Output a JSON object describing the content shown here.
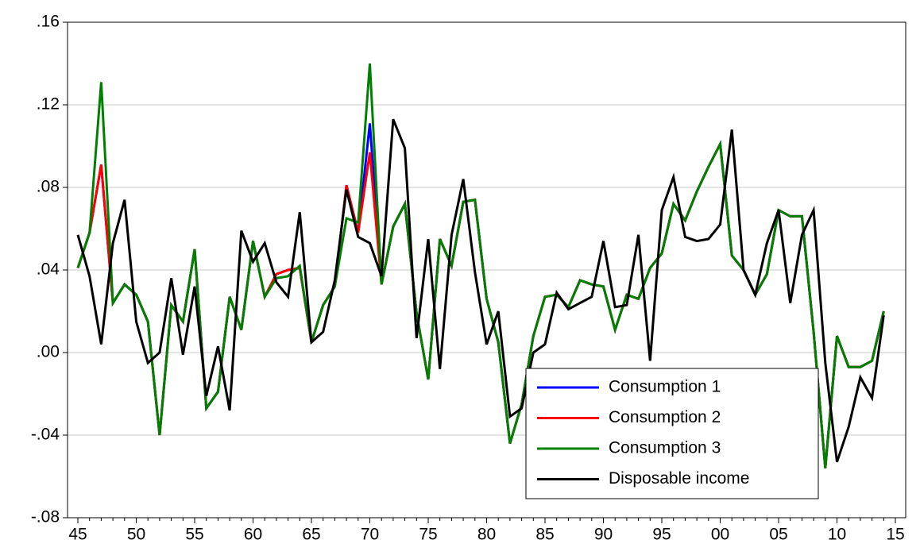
{
  "chart_data": {
    "type": "line",
    "categories": [
      "45",
      null,
      null,
      null,
      null,
      "50",
      null,
      null,
      null,
      null,
      "55",
      null,
      null,
      null,
      null,
      "60",
      null,
      null,
      null,
      null,
      "65",
      null,
      null,
      null,
      null,
      "70",
      null,
      null,
      null,
      null,
      "75",
      null,
      null,
      null,
      null,
      "80",
      null,
      null,
      null,
      null,
      "85",
      null,
      null,
      null,
      null,
      "90",
      null,
      null,
      null,
      null,
      "95",
      null,
      null,
      null,
      null,
      "00",
      null,
      null,
      null,
      null,
      "05",
      null,
      null,
      null,
      null,
      "10",
      null,
      null,
      null,
      null,
      "15"
    ],
    "series": [
      {
        "name": "Consumption 1",
        "color": "#0000ff",
        "values": [
          0.041,
          0.058,
          0.091,
          0.024,
          0.033,
          0.028,
          0.015,
          -0.04,
          0.023,
          0.015,
          0.05,
          -0.027,
          -0.019,
          0.027,
          0.011,
          0.054,
          0.027,
          0.038,
          0.04,
          0.041,
          0.005,
          0.023,
          0.032,
          0.081,
          0.058,
          0.111,
          0.033,
          0.061,
          0.072,
          0.019,
          -0.013,
          0.055,
          0.042,
          0.073,
          0.074,
          0.026,
          0.005,
          -0.044,
          -0.025,
          0.008,
          0.027,
          0.028,
          0.022,
          0.035,
          0.033,
          0.032,
          0.011,
          0.028,
          0.026,
          0.041,
          0.048,
          0.072,
          0.064,
          0.078,
          0.09,
          0.101,
          0.047,
          0.04,
          0.028,
          0.038,
          0.069,
          0.066,
          0.066,
          0.01,
          -0.056,
          0.008,
          -0.007,
          -0.007,
          -0.004,
          0.02,
          null
        ]
      },
      {
        "name": "Consumption 2",
        "color": "#ff0000",
        "values": [
          0.041,
          0.058,
          0.091,
          0.024,
          0.033,
          0.028,
          0.015,
          -0.04,
          0.023,
          0.015,
          0.05,
          -0.027,
          -0.019,
          0.027,
          0.011,
          0.054,
          0.027,
          0.038,
          0.04,
          0.041,
          0.005,
          0.023,
          0.032,
          0.081,
          0.058,
          0.097,
          0.033,
          0.061,
          0.072,
          0.019,
          -0.013,
          0.055,
          0.042,
          0.073,
          0.074,
          0.026,
          0.005,
          -0.044,
          -0.025,
          0.008,
          0.027,
          0.028,
          0.022,
          0.035,
          0.033,
          0.032,
          0.011,
          0.028,
          0.026,
          0.041,
          0.048,
          0.072,
          0.064,
          0.078,
          0.09,
          0.101,
          0.047,
          0.04,
          0.028,
          0.038,
          0.069,
          0.066,
          0.066,
          0.01,
          -0.056,
          0.008,
          -0.007,
          -0.007,
          -0.004,
          0.02,
          null
        ]
      },
      {
        "name": "Consumption 3",
        "color": "#008000",
        "values": [
          0.041,
          0.058,
          0.131,
          0.024,
          0.033,
          0.028,
          0.015,
          -0.04,
          0.023,
          0.015,
          0.05,
          -0.027,
          -0.019,
          0.027,
          0.011,
          0.054,
          0.027,
          0.036,
          0.037,
          0.042,
          0.005,
          0.023,
          0.032,
          0.065,
          0.063,
          0.14,
          0.033,
          0.061,
          0.072,
          0.019,
          -0.013,
          0.055,
          0.042,
          0.073,
          0.074,
          0.026,
          0.005,
          -0.044,
          -0.025,
          0.008,
          0.027,
          0.028,
          0.022,
          0.035,
          0.033,
          0.032,
          0.011,
          0.028,
          0.026,
          0.041,
          0.048,
          0.072,
          0.064,
          0.078,
          0.09,
          0.101,
          0.047,
          0.04,
          0.028,
          0.038,
          0.069,
          0.066,
          0.066,
          0.01,
          -0.056,
          0.008,
          -0.007,
          -0.007,
          -0.004,
          0.02,
          null
        ]
      },
      {
        "name": "Disposable income",
        "color": "#000000",
        "values": [
          0.057,
          0.037,
          0.004,
          0.053,
          0.074,
          0.015,
          -0.005,
          0.0,
          0.036,
          -0.001,
          0.032,
          -0.021,
          0.003,
          -0.028,
          0.059,
          0.044,
          0.053,
          0.034,
          0.027,
          0.068,
          0.005,
          0.01,
          0.035,
          0.079,
          0.056,
          0.053,
          0.037,
          0.113,
          0.099,
          0.007,
          0.055,
          -0.008,
          0.057,
          0.084,
          0.039,
          0.004,
          0.02,
          -0.031,
          -0.027,
          0.0,
          0.004,
          0.029,
          0.021,
          0.024,
          0.027,
          0.054,
          0.022,
          0.023,
          0.057,
          -0.004,
          0.069,
          0.085,
          0.056,
          0.054,
          0.055,
          0.062,
          0.108,
          0.04,
          0.028,
          0.053,
          0.069,
          0.024,
          0.057,
          0.069,
          -0.005,
          -0.053,
          -0.036,
          -0.012,
          -0.022,
          0.018,
          null
        ]
      }
    ],
    "ylim": [
      -0.08,
      0.16
    ],
    "yticks": [
      {
        "value": -0.08,
        "label": "-.08"
      },
      {
        "value": -0.04,
        "label": "-.04"
      },
      {
        "value": 0,
        "label": ".00"
      },
      {
        "value": 0.04,
        "label": ".04"
      },
      {
        "value": 0.08,
        "label": ".08"
      },
      {
        "value": 0.12,
        "label": ".12"
      },
      {
        "value": 0.16,
        "label": ".16"
      }
    ],
    "grid": true,
    "legend": "lower right"
  }
}
